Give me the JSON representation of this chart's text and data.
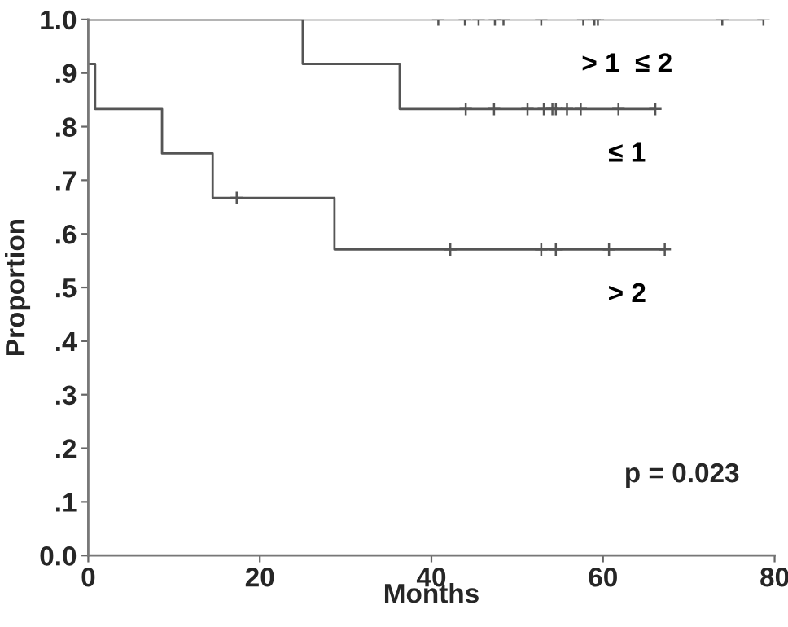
{
  "chart_data": {
    "type": "step",
    "xlabel": "Months",
    "ylabel": "Proportion",
    "xlim": [
      0,
      80
    ],
    "xticks": [
      0,
      20,
      40,
      60,
      80
    ],
    "ylim": [
      0,
      1
    ],
    "yticks": [
      {
        "value": 0,
        "label": "0.0"
      },
      {
        "value": 0.1,
        "label": ".1"
      },
      {
        "value": 0.2,
        "label": ".2"
      },
      {
        "value": 0.3,
        "label": ".3"
      },
      {
        "value": 0.4,
        "label": ".4"
      },
      {
        "value": 0.5,
        "label": ".5"
      },
      {
        "value": 0.6,
        "label": ".6"
      },
      {
        "value": 0.7,
        "label": ".7"
      },
      {
        "value": 0.8,
        "label": ".8"
      },
      {
        "value": 0.9,
        "label": ".9"
      },
      {
        "value": 1,
        "label": "1.0"
      }
    ],
    "grid": false,
    "legend": "right",
    "line_style": "solid",
    "series": [
      {
        "name": "> 1  ≤ 2",
        "color": "#555555",
        "x": [
          0,
          78.7
        ],
        "values": [
          1.0,
          1.0
        ]
      },
      {
        "name": "≤ 1",
        "color": "#555555",
        "x": [
          0,
          25.0,
          36.3,
          66.1
        ],
        "values": [
          1.0,
          0.917,
          0.833,
          0.833
        ]
      },
      {
        "name": "> 2",
        "color": "#555555",
        "x": [
          0,
          0.8,
          8.6,
          14.5,
          28.7,
          67.2
        ],
        "values": [
          0.917,
          0.833,
          0.75,
          0.667,
          0.571,
          0.571
        ]
      },
      {
        "type": "scatter",
        "marker": "cross",
        "color": "#555555",
        "x": [
          40.8,
          43.9,
          45.5,
          47.4,
          48.4,
          52.8,
          57.7,
          59.0,
          59.4,
          73.9,
          78.7
        ],
        "values": [
          1,
          1,
          1,
          1,
          1,
          1,
          1,
          1,
          1,
          1,
          1
        ]
      },
      {
        "type": "scatter",
        "marker": "cross",
        "color": "#555555",
        "x": [
          44.0,
          47.3,
          51.2,
          53.1,
          54.1,
          54.5,
          55.8,
          57.4,
          61.8,
          66.1
        ],
        "values": [
          0.833,
          0.833,
          0.833,
          0.833,
          0.833,
          0.833,
          0.833,
          0.833,
          0.833,
          0.833
        ]
      },
      {
        "type": "scatter",
        "marker": "cross",
        "color": "#555555",
        "x": [
          17.3,
          42.2,
          52.8,
          54.5,
          60.7,
          67.2
        ],
        "values": [
          0.667,
          0.571,
          0.571,
          0.571,
          0.571,
          0.571
        ]
      }
    ],
    "annotations": [
      "p = 0.023"
    ]
  }
}
